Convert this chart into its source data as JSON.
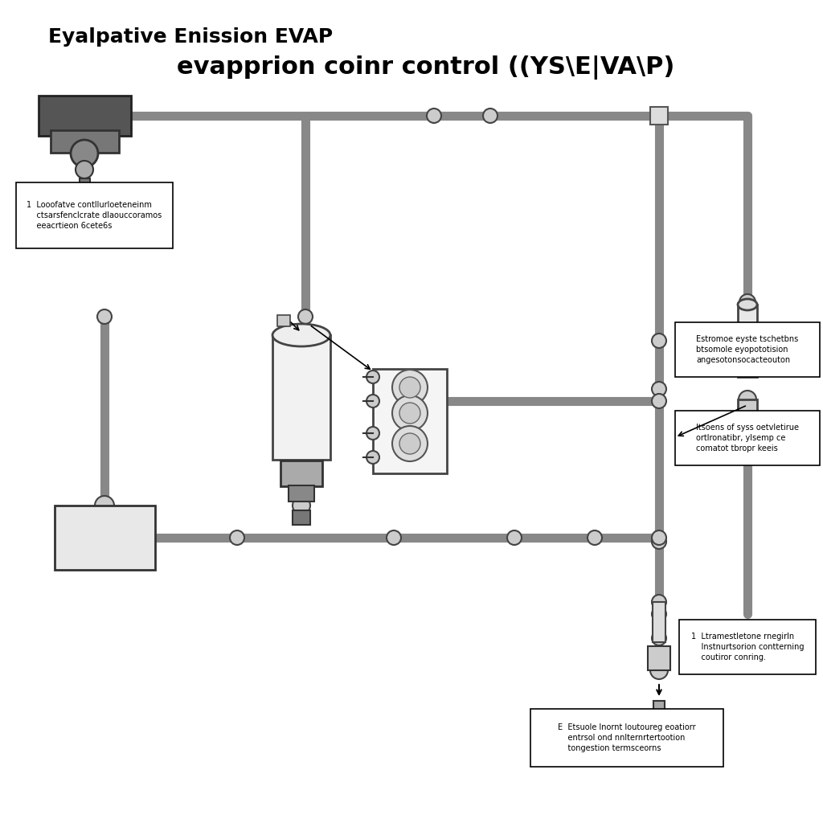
{
  "title_line1": "Eyalpative Enission EVAP",
  "title_line2": "evapprion coinr control ((YS\\E\\VA\\P)",
  "background_color": "#ffffff",
  "pipe_color": "#888888",
  "component_color": "#cccccc",
  "component_edge": "#444444",
  "text_color": "#000000",
  "annotation1": "1  Looofatve contllurloeteneinm\n    ctsarsfenclcrate dlaouccoramos\n    eeacrtieon 6cete6s",
  "annotation2": "Estromoe eyste tschetbns\nbtsomole eyopototision\nangesotonsocacteouton",
  "annotation3": "Itsoens of syss oetvletirue\nortlronatibr, ylsemp ce\ncomatot tbropr keeis",
  "annotation4": "1  Ltramestletone rnegirln\n    Instnurtsorion contterning\n    coutiror conring.",
  "annotation5": "E  Etsuole lnornt loutoureg eoatiorr\n    entrsol ond nnlternrtertootion\n    tongestion termsceorns"
}
